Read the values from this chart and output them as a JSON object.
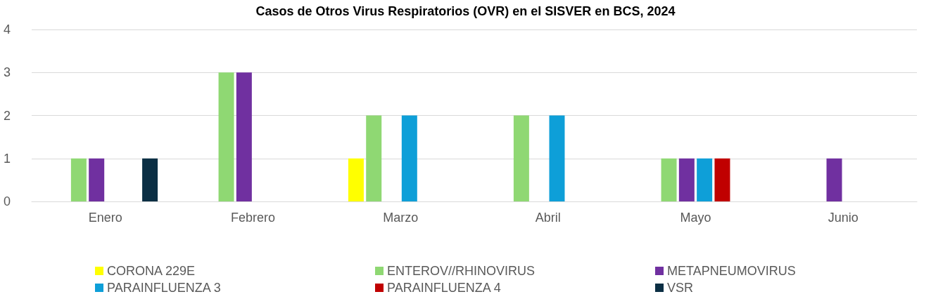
{
  "chart_data": {
    "type": "bar",
    "title": "Casos de Otros Virus Respiratorios (OVR) en el SISVER en BCS, 2024",
    "categories": [
      "Enero",
      "Febrero",
      "Marzo",
      "Abril",
      "Mayo",
      "Junio"
    ],
    "series": [
      {
        "name": "CORONA 229E",
        "color": "#ffff00",
        "values": [
          0,
          0,
          1,
          0,
          0,
          0
        ]
      },
      {
        "name": "ENTEROV//RHINOVIRUS",
        "color": "#8fd873",
        "values": [
          1,
          3,
          2,
          2,
          1,
          0
        ]
      },
      {
        "name": "METAPNEUMOVIRUS",
        "color": "#7030a0",
        "values": [
          1,
          3,
          0,
          0,
          1,
          1
        ]
      },
      {
        "name": "PARAINFLUENZA 3",
        "color": "#0e9fd8",
        "values": [
          0,
          0,
          2,
          2,
          1,
          0
        ]
      },
      {
        "name": "PARAINFLUENZA 4",
        "color": "#c00000",
        "values": [
          0,
          0,
          0,
          0,
          1,
          0
        ]
      },
      {
        "name": "VSR",
        "color": "#0b2f44",
        "values": [
          1,
          0,
          0,
          0,
          0,
          0
        ]
      }
    ],
    "ylim": [
      0,
      4
    ],
    "yticks": [
      0,
      1,
      2,
      3,
      4
    ],
    "grid": "y",
    "legend": "bottom"
  }
}
